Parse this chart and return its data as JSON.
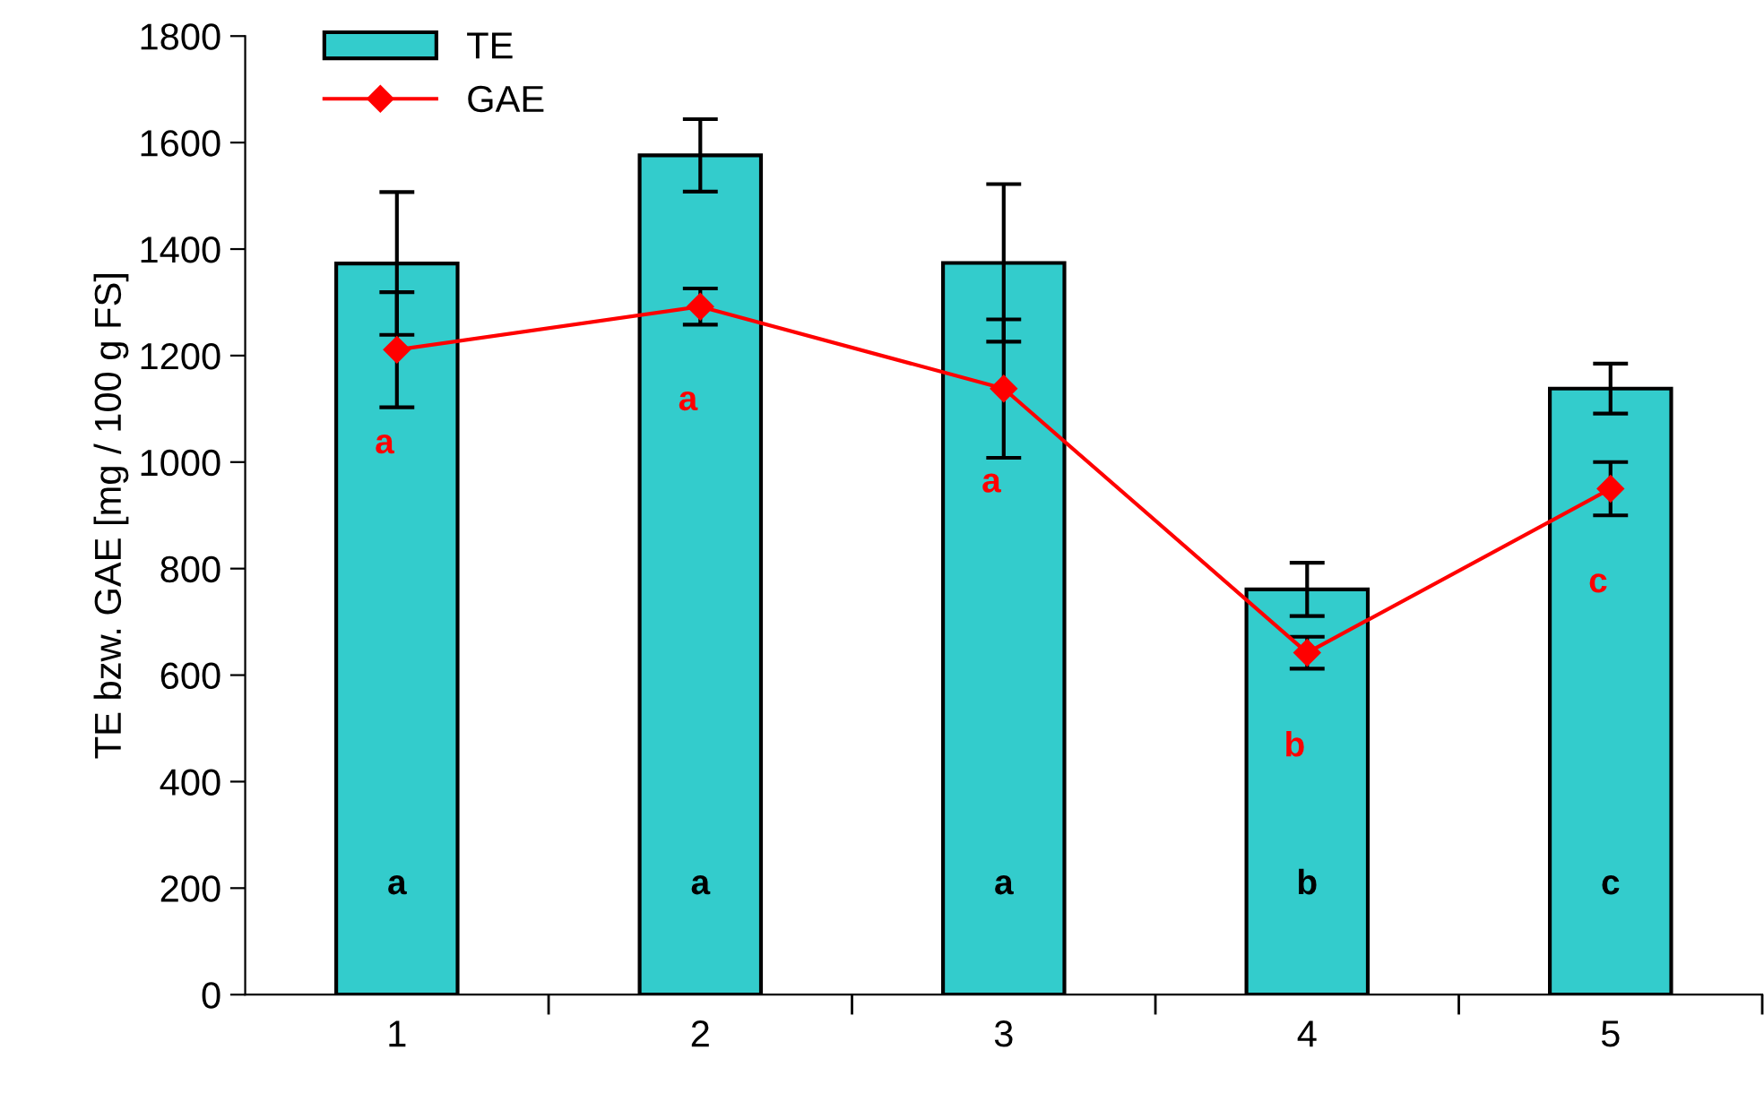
{
  "chart_data": {
    "type": "bar",
    "ylabel": "TE bzw. GAE [mg / 100 g FS]",
    "categories": [
      "1",
      "2",
      "3",
      "4",
      "5"
    ],
    "series": [
      {
        "name": "TE",
        "color": "#33cccc",
        "values": [
          1373,
          1576,
          1374,
          761,
          1138
        ],
        "errors": [
          134,
          68,
          148,
          50,
          47
        ],
        "value_labels": [
          "a",
          "a",
          "a",
          "b",
          "c"
        ]
      },
      {
        "name": "GAE",
        "type": "line",
        "color": "#ff0000",
        "values": [
          1211,
          1292,
          1138,
          642,
          950
        ],
        "errors": [
          108,
          34,
          130,
          30,
          50
        ],
        "value_labels": [
          "a",
          "a",
          "a",
          "b",
          "c"
        ],
        "marker": "diamond"
      }
    ],
    "ylim": [
      0,
      1800
    ],
    "yticks": [
      0,
      200,
      400,
      600,
      800,
      1000,
      1200,
      1400,
      1600,
      1800
    ],
    "grid": false,
    "legend": "top left"
  }
}
